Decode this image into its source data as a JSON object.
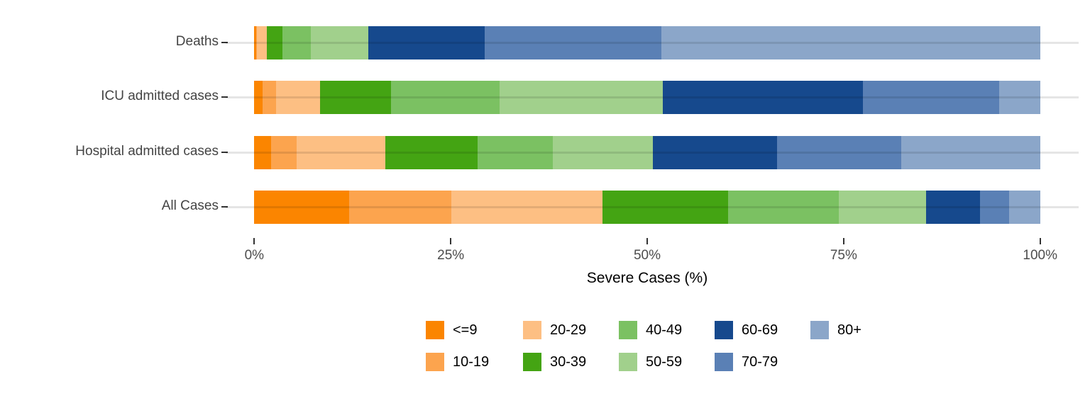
{
  "chart_data": {
    "type": "bar",
    "orientation": "horizontal",
    "stacked": true,
    "title": "",
    "xlabel": "Severe Cases (%)",
    "x_ticks": [
      "0%",
      "25%",
      "50%",
      "75%",
      "100%"
    ],
    "x_tick_values": [
      0,
      25,
      50,
      75,
      100
    ],
    "xlim": [
      0,
      100
    ],
    "grid": "horizontal-category-lines",
    "legend_position": "bottom-center-two-rows",
    "categories": [
      "Deaths",
      "ICU admitted cases",
      "Hospital admitted cases",
      "All Cases"
    ],
    "series": [
      {
        "name": "<=9",
        "color": "#FB8500",
        "values": [
          0.2,
          1.1,
          2.1,
          12.1
        ]
      },
      {
        "name": "10-19",
        "color": "#FCA44E",
        "values": [
          0.1,
          1.7,
          3.3,
          13.0
        ]
      },
      {
        "name": "20-29",
        "color": "#FDBF83",
        "values": [
          1.3,
          5.6,
          11.3,
          19.2
        ]
      },
      {
        "name": "30-39",
        "color": "#44A413",
        "values": [
          2.0,
          9.0,
          11.7,
          16.0
        ]
      },
      {
        "name": "40-49",
        "color": "#7BC162",
        "values": [
          3.6,
          13.8,
          9.6,
          14.1
        ]
      },
      {
        "name": "50-59",
        "color": "#A1D08C",
        "values": [
          7.3,
          20.8,
          12.7,
          11.1
        ]
      },
      {
        "name": "60-69",
        "color": "#16498D",
        "values": [
          14.8,
          25.5,
          15.8,
          6.9
        ]
      },
      {
        "name": "70-79",
        "color": "#5A80B5",
        "values": [
          22.5,
          17.3,
          15.8,
          3.7
        ]
      },
      {
        "name": "80+",
        "color": "#8BA6C9",
        "values": [
          48.2,
          5.2,
          17.7,
          3.9
        ]
      }
    ],
    "legend_columns": [
      [
        "<=9",
        "10-19"
      ],
      [
        "20-29",
        "30-39"
      ],
      [
        "40-49",
        "50-59"
      ],
      [
        "60-69",
        "70-79"
      ],
      [
        "80+"
      ]
    ]
  },
  "colors": {
    "axis_text": "#4D4D4D",
    "category_text": "#444444",
    "axis_title": "#000000",
    "tick_mark": "#333333",
    "gridline": "#E5E5E5",
    "background": "#FFFFFF"
  }
}
